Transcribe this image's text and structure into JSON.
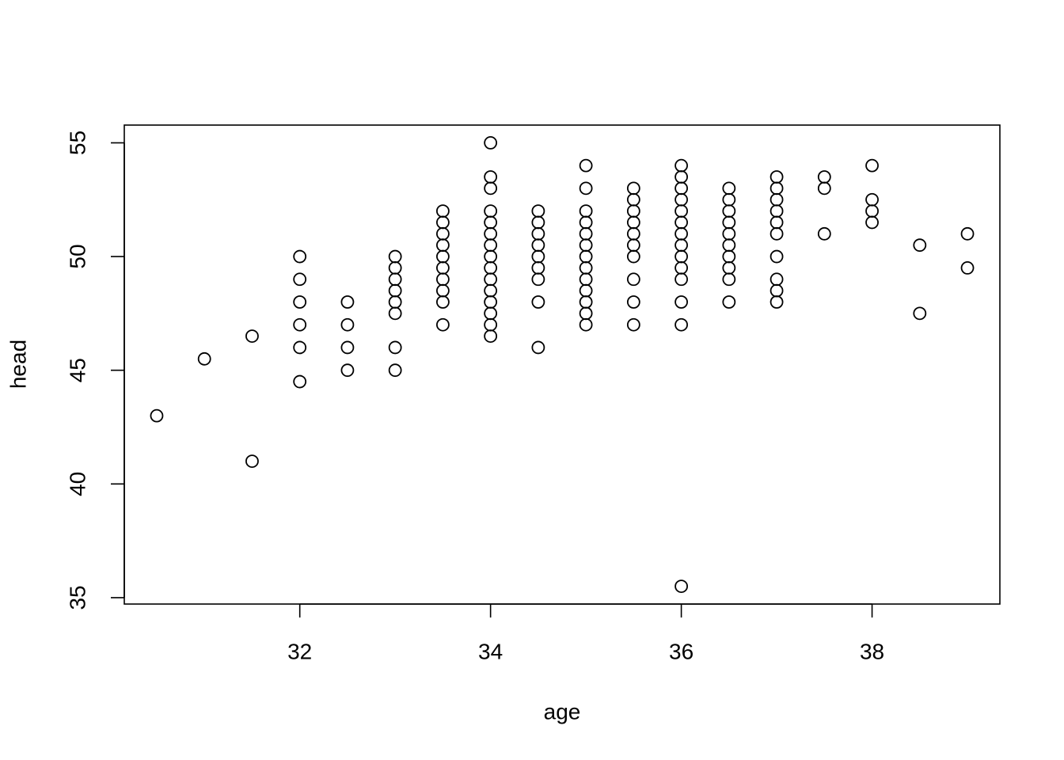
{
  "chart_data": {
    "type": "scatter",
    "x_label": "age",
    "y_label": "head",
    "x": [
      30.5,
      31,
      31.5,
      31.5,
      32,
      32,
      32,
      32,
      32,
      32,
      32.5,
      32.5,
      32.5,
      32.5,
      33,
      33,
      33,
      33,
      33,
      33,
      33,
      33,
      33.5,
      33.5,
      33.5,
      33.5,
      33.5,
      33.5,
      33.5,
      33.5,
      33.5,
      33.5,
      34,
      34,
      34,
      34,
      34,
      34,
      34,
      34,
      34,
      34,
      34,
      34,
      34,
      34,
      34,
      34.5,
      34.5,
      34.5,
      34.5,
      34.5,
      34.5,
      34.5,
      34.5,
      34.5,
      35,
      35,
      35,
      35,
      35,
      35,
      35,
      35,
      35,
      35,
      35,
      35,
      35,
      35.5,
      35.5,
      35.5,
      35.5,
      35.5,
      35.5,
      35.5,
      35.5,
      35.5,
      35.5,
      36,
      36,
      36,
      36,
      36,
      36,
      36,
      36,
      36,
      36,
      36,
      36,
      36,
      36,
      36.5,
      36.5,
      36.5,
      36.5,
      36.5,
      36.5,
      36.5,
      36.5,
      36.5,
      36.5,
      37,
      37,
      37,
      37,
      37,
      37,
      37,
      37,
      37,
      37,
      37.5,
      37.5,
      37.5,
      38,
      38,
      38,
      38,
      38.5,
      38.5,
      39,
      39
    ],
    "values": [
      43,
      45.5,
      46.5,
      41,
      50,
      49,
      48,
      47,
      46,
      44.5,
      48,
      47,
      46,
      45,
      50,
      49.5,
      49,
      48.5,
      48,
      47.5,
      46,
      45,
      52,
      51.5,
      51,
      50.5,
      50,
      49.5,
      49,
      48.5,
      48,
      47,
      55,
      53.5,
      53,
      52,
      51.5,
      51,
      50.5,
      50,
      49.5,
      49,
      48.5,
      48,
      47.5,
      47,
      46.5,
      52,
      51.5,
      51,
      50.5,
      50,
      49.5,
      49,
      48,
      46,
      54,
      53,
      52,
      51.5,
      51,
      50.5,
      50,
      49.5,
      49,
      48.5,
      48,
      47.5,
      47,
      53,
      52.5,
      52,
      51.5,
      51,
      50.5,
      50,
      49,
      48,
      47,
      54,
      53.5,
      53,
      52.5,
      52,
      51.5,
      51,
      50.5,
      50,
      49.5,
      49,
      48,
      47,
      35.5,
      53,
      52.5,
      52,
      51.5,
      51,
      50.5,
      50,
      49.5,
      49,
      48,
      53.5,
      53,
      52.5,
      52,
      51.5,
      51,
      50,
      49,
      48.5,
      48,
      53.5,
      53,
      51,
      54,
      52.5,
      52,
      51.5,
      50.5,
      47.5,
      51,
      49.5
    ],
    "color": "#000000",
    "xlim": [
      30.16,
      39.34
    ],
    "xticks": [
      32,
      34,
      36,
      38
    ],
    "ylim": [
      34.72,
      55.78
    ],
    "yticks": [
      35,
      40,
      45,
      50,
      55
    ],
    "grid": false
  }
}
